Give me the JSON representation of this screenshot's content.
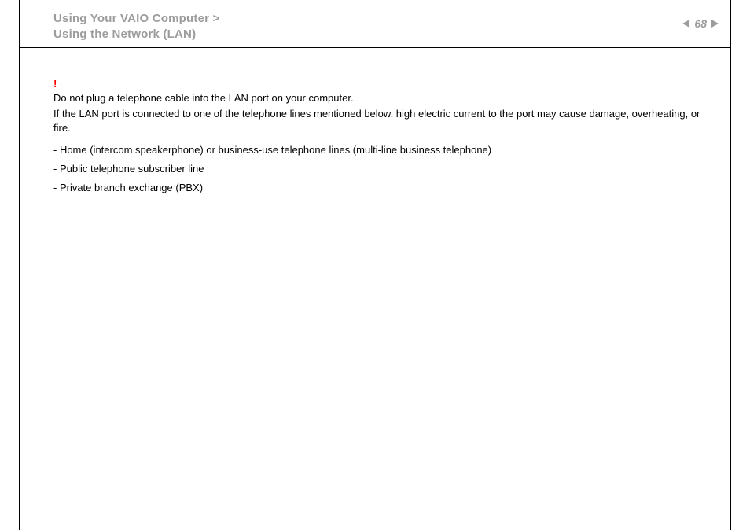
{
  "header": {
    "breadcrumb_line1": "Using Your VAIO Computer >",
    "breadcrumb_line2": "Using the Network (LAN)",
    "page_number": "68"
  },
  "warning": {
    "bang": "!",
    "line1": "Do not plug a telephone cable into the LAN port on your computer.",
    "line2": "If the LAN port is connected to one of the telephone lines mentioned below, high electric current to the port may cause damage, overheating, or fire."
  },
  "bullets": {
    "b1": "- Home (intercom speakerphone) or business-use telephone lines (multi-line business telephone)",
    "b2": "- Public telephone subscriber line",
    "b3": "- Private branch exchange (PBX)"
  },
  "colors": {
    "text": "#000000",
    "muted": "#9c9c9c",
    "accent": "#ff0000",
    "background": "#ffffff",
    "rule": "#000000"
  }
}
